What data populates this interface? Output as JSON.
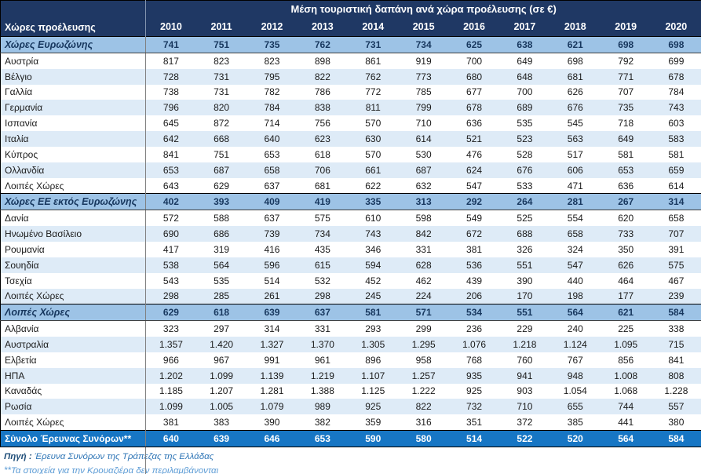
{
  "table": {
    "title": "Μέση τουριστική δαπάνη  ανά χώρα προέλευσης (σε €)",
    "corner_header": "Χώρες προέλευσης",
    "years": [
      "2010",
      "2011",
      "2012",
      "2013",
      "2014",
      "2015",
      "2016",
      "2017",
      "2018",
      "2019",
      "2020"
    ],
    "rows": [
      {
        "label": "Χώρες Ευρωζώνης",
        "type": "section",
        "values": [
          "741",
          "751",
          "735",
          "762",
          "731",
          "734",
          "625",
          "638",
          "621",
          "698",
          "698"
        ]
      },
      {
        "label": "Αυστρία",
        "type": "data",
        "values": [
          "817",
          "823",
          "823",
          "898",
          "861",
          "919",
          "700",
          "649",
          "698",
          "792",
          "699"
        ]
      },
      {
        "label": "Βέλγιο",
        "type": "data",
        "values": [
          "728",
          "731",
          "795",
          "822",
          "762",
          "773",
          "680",
          "648",
          "681",
          "771",
          "678"
        ]
      },
      {
        "label": "Γαλλία",
        "type": "data",
        "values": [
          "738",
          "731",
          "782",
          "786",
          "772",
          "785",
          "677",
          "700",
          "626",
          "707",
          "784"
        ]
      },
      {
        "label": "Γερμανία",
        "type": "data",
        "values": [
          "796",
          "820",
          "784",
          "838",
          "811",
          "799",
          "678",
          "689",
          "676",
          "735",
          "743"
        ]
      },
      {
        "label": "Ισπανία",
        "type": "data",
        "values": [
          "645",
          "872",
          "714",
          "756",
          "570",
          "710",
          "636",
          "535",
          "545",
          "718",
          "603"
        ]
      },
      {
        "label": "Ιταλία",
        "type": "data",
        "values": [
          "642",
          "668",
          "640",
          "623",
          "630",
          "614",
          "521",
          "523",
          "563",
          "649",
          "583"
        ]
      },
      {
        "label": "Κύπρος",
        "type": "data",
        "values": [
          "841",
          "751",
          "653",
          "618",
          "570",
          "530",
          "476",
          "528",
          "517",
          "581",
          "581"
        ]
      },
      {
        "label": "Ολλανδία",
        "type": "data",
        "values": [
          "653",
          "687",
          "658",
          "706",
          "661",
          "687",
          "624",
          "676",
          "606",
          "653",
          "659"
        ]
      },
      {
        "label": "Λοιπές Χώρες",
        "type": "data",
        "values": [
          "643",
          "629",
          "637",
          "681",
          "622",
          "632",
          "547",
          "533",
          "471",
          "636",
          "614"
        ]
      },
      {
        "label": "Χώρες ΕΕ εκτός Ευρωζώνης",
        "type": "section",
        "values": [
          "402",
          "393",
          "409",
          "419",
          "335",
          "313",
          "292",
          "264",
          "281",
          "267",
          "314"
        ]
      },
      {
        "label": "Δανία",
        "type": "data",
        "values": [
          "572",
          "588",
          "637",
          "575",
          "610",
          "598",
          "549",
          "525",
          "554",
          "620",
          "658"
        ]
      },
      {
        "label": "Ηνωμένο Βασίλειο",
        "type": "data",
        "values": [
          "690",
          "686",
          "739",
          "734",
          "743",
          "842",
          "672",
          "688",
          "658",
          "733",
          "707"
        ]
      },
      {
        "label": "Ρουμανία",
        "type": "data",
        "values": [
          "417",
          "319",
          "416",
          "435",
          "346",
          "331",
          "381",
          "326",
          "324",
          "350",
          "391"
        ]
      },
      {
        "label": "Σουηδία",
        "type": "data",
        "values": [
          "538",
          "564",
          "596",
          "615",
          "594",
          "628",
          "536",
          "551",
          "547",
          "626",
          "575"
        ]
      },
      {
        "label": "Τσεχία",
        "type": "data",
        "values": [
          "543",
          "535",
          "514",
          "532",
          "452",
          "462",
          "439",
          "390",
          "440",
          "464",
          "467"
        ]
      },
      {
        "label": "Λοιπές Χώρες",
        "type": "data",
        "values": [
          "298",
          "285",
          "261",
          "298",
          "245",
          "224",
          "206",
          "170",
          "198",
          "177",
          "239"
        ]
      },
      {
        "label": "Λοιπές Χώρες",
        "type": "section",
        "values": [
          "629",
          "618",
          "639",
          "637",
          "581",
          "571",
          "534",
          "551",
          "564",
          "621",
          "584"
        ]
      },
      {
        "label": "Αλβανία",
        "type": "data",
        "values": [
          "323",
          "297",
          "314",
          "331",
          "293",
          "299",
          "236",
          "229",
          "240",
          "225",
          "338"
        ]
      },
      {
        "label": "Αυστραλία",
        "type": "data",
        "values": [
          "1.357",
          "1.420",
          "1.327",
          "1.370",
          "1.305",
          "1.295",
          "1.076",
          "1.218",
          "1.124",
          "1.095",
          "715"
        ]
      },
      {
        "label": "Ελβετία",
        "type": "data",
        "values": [
          "966",
          "967",
          "991",
          "961",
          "896",
          "958",
          "768",
          "760",
          "767",
          "856",
          "841"
        ]
      },
      {
        "label": "ΗΠΑ",
        "type": "data",
        "values": [
          "1.202",
          "1.099",
          "1.139",
          "1.219",
          "1.107",
          "1.257",
          "935",
          "941",
          "948",
          "1.008",
          "808"
        ]
      },
      {
        "label": "Καναδάς",
        "type": "data",
        "values": [
          "1.185",
          "1.207",
          "1.281",
          "1.388",
          "1.125",
          "1.222",
          "925",
          "903",
          "1.054",
          "1.068",
          "1.228"
        ]
      },
      {
        "label": "Ρωσία",
        "type": "data",
        "values": [
          "1.099",
          "1.005",
          "1.079",
          "989",
          "925",
          "822",
          "732",
          "710",
          "655",
          "744",
          "557"
        ]
      },
      {
        "label": "Λοιπές Χώρες",
        "type": "data",
        "values": [
          "381",
          "383",
          "390",
          "382",
          "359",
          "316",
          "351",
          "372",
          "385",
          "441",
          "380"
        ]
      },
      {
        "label": "Σύνολο Έρευνας Συνόρων**",
        "type": "total",
        "values": [
          "640",
          "639",
          "646",
          "653",
          "590",
          "580",
          "514",
          "522",
          "520",
          "564",
          "584"
        ]
      }
    ]
  },
  "footer": {
    "source_label": "Πηγή :",
    "source_text": "Έρευνα Συνόρων της Τράπεζας της Ελλάδας",
    "note": "**Τα στοιχεία για την Κρουαζιέρα δεν περιλαμβάνονται"
  },
  "colors": {
    "header_bg": "#1F3864",
    "section_bg": "#9DC3E6",
    "alt_row_bg": "#DEEBF7",
    "total_bg": "#1776C4",
    "source_text_color": "#2E75B6",
    "note_text_color": "#5B9BD5"
  }
}
